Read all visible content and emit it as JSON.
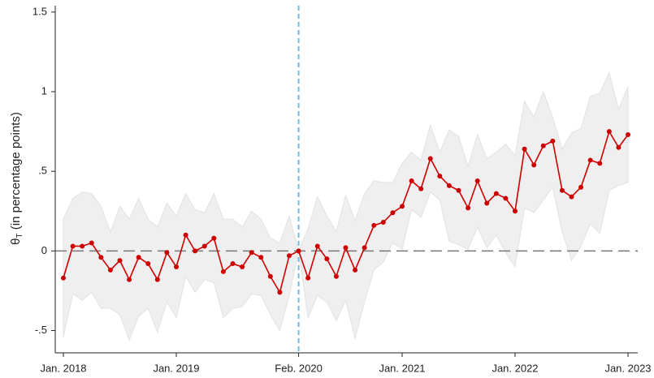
{
  "chart_data": {
    "type": "line",
    "y_label": [
      "θ",
      "T",
      " (in percentage points)"
    ],
    "categories": [
      "Jan. 2018",
      null,
      null,
      null,
      null,
      null,
      null,
      null,
      null,
      null,
      null,
      null,
      "Jan. 2019",
      null,
      null,
      null,
      null,
      null,
      null,
      null,
      null,
      null,
      null,
      null,
      null,
      "Feb. 2020",
      null,
      null,
      null,
      null,
      null,
      null,
      null,
      null,
      null,
      null,
      "Jan. 2021",
      null,
      null,
      null,
      null,
      null,
      null,
      null,
      null,
      null,
      null,
      null,
      "Jan. 2022",
      null,
      null,
      null,
      null,
      null,
      null,
      null,
      null,
      null,
      null,
      null,
      "Jan. 2023"
    ],
    "values": [
      -0.17,
      0.03,
      0.03,
      0.05,
      -0.04,
      -0.12,
      -0.06,
      -0.18,
      -0.04,
      -0.08,
      -0.18,
      -0.01,
      -0.1,
      0.1,
      0.0,
      0.03,
      0.08,
      -0.13,
      -0.08,
      -0.1,
      -0.01,
      -0.04,
      -0.16,
      -0.26,
      -0.03,
      0.0,
      -0.17,
      0.03,
      -0.05,
      -0.16,
      0.02,
      -0.12,
      0.02,
      0.16,
      0.18,
      0.24,
      0.28,
      0.44,
      0.39,
      0.58,
      0.47,
      0.41,
      0.38,
      0.27,
      0.44,
      0.3,
      0.36,
      0.33,
      0.25,
      0.64,
      0.54,
      0.66,
      0.69,
      0.38,
      0.34,
      0.4,
      0.57,
      0.55,
      0.75,
      0.65,
      0.73
    ],
    "upper": [
      0.2,
      0.33,
      0.37,
      0.36,
      0.28,
      0.12,
      0.28,
      0.2,
      0.33,
      0.2,
      0.15,
      0.3,
      0.22,
      0.36,
      0.26,
      0.24,
      0.36,
      0.2,
      0.2,
      0.15,
      0.25,
      0.2,
      0.08,
      0.05,
      0.22,
      0.0,
      0.14,
      0.34,
      0.22,
      0.12,
      0.35,
      0.19,
      0.36,
      0.44,
      0.43,
      0.43,
      0.55,
      0.62,
      0.57,
      0.79,
      0.62,
      0.76,
      0.72,
      0.53,
      0.73,
      0.58,
      0.62,
      0.67,
      0.6,
      0.94,
      0.84,
      1.0,
      0.84,
      0.64,
      0.74,
      0.77,
      0.97,
      0.99,
      1.12,
      0.89,
      1.03
    ],
    "lower": [
      -0.54,
      -0.27,
      -0.31,
      -0.26,
      -0.36,
      -0.36,
      -0.4,
      -0.56,
      -0.41,
      -0.36,
      -0.51,
      -0.32,
      -0.42,
      -0.16,
      -0.26,
      -0.18,
      -0.2,
      -0.42,
      -0.36,
      -0.35,
      -0.27,
      -0.28,
      -0.4,
      -0.5,
      -0.28,
      0.0,
      -0.42,
      -0.28,
      -0.32,
      -0.44,
      -0.31,
      -0.55,
      -0.32,
      -0.12,
      -0.07,
      0.05,
      0.01,
      0.26,
      0.21,
      0.37,
      0.32,
      0.06,
      0.04,
      0.01,
      0.15,
      0.02,
      0.1,
      -0.01,
      -0.1,
      0.27,
      0.24,
      0.32,
      0.4,
      0.12,
      -0.06,
      0.03,
      0.17,
      0.11,
      0.38,
      0.41,
      0.43
    ],
    "color": "#cc0000",
    "band_color": "#efefef",
    "reference_lines": {
      "x": 25,
      "y": 0
    },
    "ylim": [
      -0.64,
      1.54
    ],
    "yticks": [
      {
        "value": -0.5,
        "label": "-.5"
      },
      0,
      {
        "value": 0.5,
        "label": ".5"
      },
      1,
      1.5
    ],
    "grid": false
  }
}
